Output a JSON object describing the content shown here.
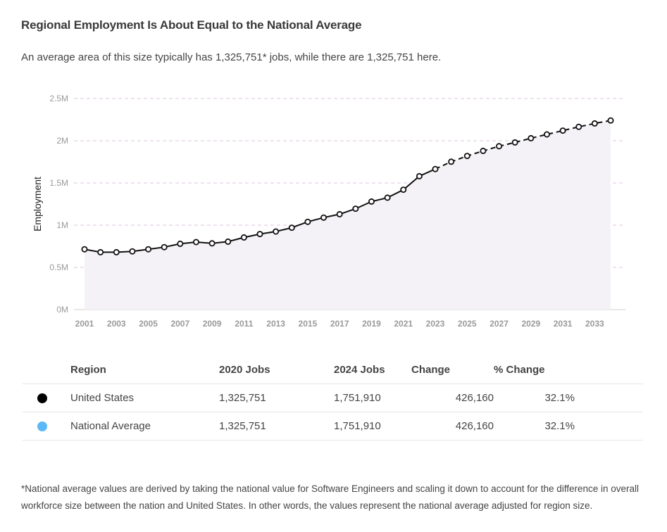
{
  "header": {
    "title": "Regional Employment Is About Equal to the National Average",
    "subtitle": "An average area of this size typically has 1,325,751* jobs, while there are 1,325,751 here."
  },
  "chart_data": {
    "type": "line",
    "ylabel": "Employment",
    "ylim": [
      0,
      2500000
    ],
    "yticks": [
      {
        "value": 0,
        "label": "0M"
      },
      {
        "value": 500000,
        "label": "0.5M"
      },
      {
        "value": 1000000,
        "label": "1M"
      },
      {
        "value": 1500000,
        "label": "1.5M"
      },
      {
        "value": 2000000,
        "label": "2M"
      },
      {
        "value": 2500000,
        "label": "2.5M"
      }
    ],
    "xlim": [
      2001,
      2034
    ],
    "xtick_labels": [
      "2001",
      "2003",
      "2005",
      "2007",
      "2009",
      "2011",
      "2013",
      "2015",
      "2017",
      "2019",
      "2021",
      "2023",
      "2025",
      "2027",
      "2029",
      "2031",
      "2033"
    ],
    "grid": true,
    "projected_from": 2023,
    "series": [
      {
        "color": "#111111",
        "points": [
          {
            "x": 2001,
            "y": 715000
          },
          {
            "x": 2002,
            "y": 680000
          },
          {
            "x": 2003,
            "y": 680000
          },
          {
            "x": 2004,
            "y": 690000
          },
          {
            "x": 2005,
            "y": 715000
          },
          {
            "x": 2006,
            "y": 740000
          },
          {
            "x": 2007,
            "y": 780000
          },
          {
            "x": 2008,
            "y": 800000
          },
          {
            "x": 2009,
            "y": 785000
          },
          {
            "x": 2010,
            "y": 805000
          },
          {
            "x": 2011,
            "y": 855000
          },
          {
            "x": 2012,
            "y": 895000
          },
          {
            "x": 2013,
            "y": 925000
          },
          {
            "x": 2014,
            "y": 970000
          },
          {
            "x": 2015,
            "y": 1040000
          },
          {
            "x": 2016,
            "y": 1090000
          },
          {
            "x": 2017,
            "y": 1130000
          },
          {
            "x": 2018,
            "y": 1195000
          },
          {
            "x": 2019,
            "y": 1280000
          },
          {
            "x": 2020,
            "y": 1325751
          },
          {
            "x": 2021,
            "y": 1420000
          },
          {
            "x": 2022,
            "y": 1580000
          },
          {
            "x": 2023,
            "y": 1665000
          },
          {
            "x": 2024,
            "y": 1751910
          },
          {
            "x": 2025,
            "y": 1820000
          },
          {
            "x": 2026,
            "y": 1880000
          },
          {
            "x": 2027,
            "y": 1935000
          },
          {
            "x": 2028,
            "y": 1980000
          },
          {
            "x": 2029,
            "y": 2030000
          },
          {
            "x": 2030,
            "y": 2075000
          },
          {
            "x": 2031,
            "y": 2120000
          },
          {
            "x": 2032,
            "y": 2165000
          },
          {
            "x": 2033,
            "y": 2205000
          },
          {
            "x": 2034,
            "y": 2240000
          }
        ]
      }
    ]
  },
  "table": {
    "headers": {
      "region": "Region",
      "jobs_2020": "2020 Jobs",
      "jobs_2024": "2024 Jobs",
      "change": "Change",
      "pct_change": "% Change"
    },
    "rows": [
      {
        "dot_color": "#000000",
        "region": "United States",
        "jobs_2020": "1,325,751",
        "jobs_2024": "1,751,910",
        "change": "426,160",
        "pct_change": "32.1%"
      },
      {
        "dot_color": "#5bb8f5",
        "region": "National Average",
        "jobs_2020": "1,325,751",
        "jobs_2024": "1,751,910",
        "change": "426,160",
        "pct_change": "32.1%"
      }
    ]
  },
  "footnote": "*National average values are derived by taking the national value for Software Engineers and scaling it down to account for the difference in overall workforce size between the nation and United States. In other words, the values represent the national average adjusted for region size."
}
